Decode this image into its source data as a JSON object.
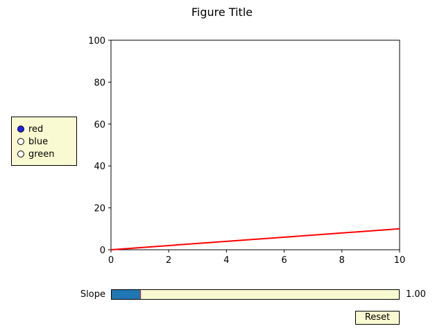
{
  "figure": {
    "title": "Figure Title"
  },
  "chart_data": {
    "type": "line",
    "x": [
      0,
      10
    ],
    "series": [
      {
        "values": [
          0,
          10
        ],
        "color": "#ff0000"
      }
    ],
    "xlim": [
      0,
      10
    ],
    "ylim": [
      0,
      100
    ],
    "xticks": [
      "0",
      "2",
      "4",
      "6",
      "8",
      "10"
    ],
    "yticks": [
      "0",
      "20",
      "40",
      "60",
      "80",
      "100"
    ],
    "grid": false
  },
  "radio": {
    "options": [
      "red",
      "blue",
      "green"
    ],
    "selected": "red",
    "panel_color": "#fafad2",
    "selected_color": "#1f1fff"
  },
  "slider": {
    "label": "Slope",
    "value_text": "1.00",
    "value": 1.0,
    "min": 0,
    "max": 10,
    "fill_color": "#1f77b4",
    "marker_color": "#ff0000"
  },
  "reset": {
    "label": "Reset"
  }
}
